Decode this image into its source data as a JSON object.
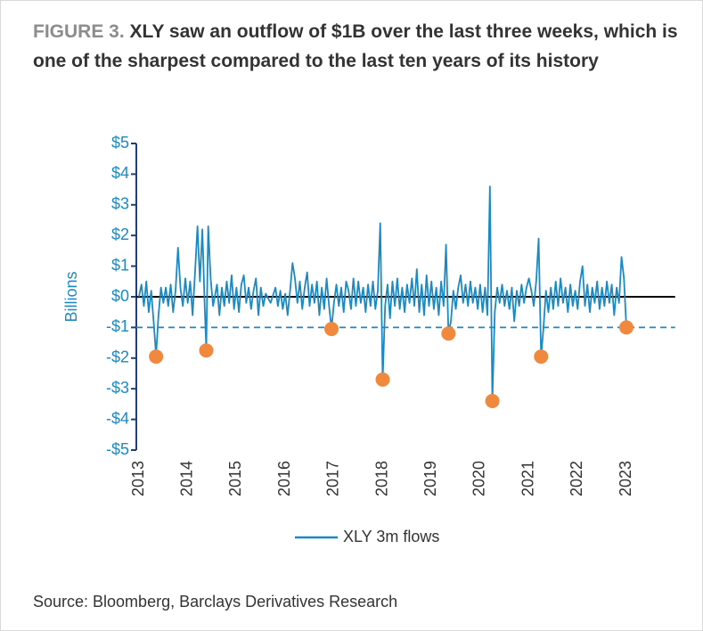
{
  "chart_data": {
    "type": "line",
    "title_label": "FIGURE 3.",
    "title": "XLY saw an outflow of $1B over the last three weeks, which is one of the sharpest compared to the last ten years of its history",
    "y_label": "Billions",
    "source": "Source: Bloomberg, Barclays Derivatives Research",
    "xlim": [
      2013,
      2024
    ],
    "xticks": [
      2013,
      2014,
      2015,
      2016,
      2017,
      2018,
      2019,
      2020,
      2021,
      2022,
      2023
    ],
    "ylim": [
      -5,
      5
    ],
    "yticks": [
      {
        "value": 5,
        "label": "$5"
      },
      {
        "value": 4,
        "label": "$4"
      },
      {
        "value": 3,
        "label": "$3"
      },
      {
        "value": 2,
        "label": "$2"
      },
      {
        "value": 1,
        "label": "$1"
      },
      {
        "value": 0,
        "label": "$0"
      },
      {
        "value": -1,
        "label": "-$1"
      },
      {
        "value": -2,
        "label": "-$2"
      },
      {
        "value": -3,
        "label": "-$3"
      },
      {
        "value": -4,
        "label": "-$4"
      },
      {
        "value": -5,
        "label": "-$5"
      }
    ],
    "threshold": -1,
    "x": [
      2013,
      2013.05,
      2013.1,
      2013.15,
      2013.2,
      2013.25,
      2013.3,
      2013.35,
      2013.4,
      2013.45,
      2013.5,
      2013.55,
      2013.6,
      2013.65,
      2013.7,
      2013.75,
      2013.8,
      2013.85,
      2013.9,
      2013.95,
      2014,
      2014.05,
      2014.1,
      2014.15,
      2014.2,
      2014.25,
      2014.3,
      2014.35,
      2014.38,
      2014.42,
      2014.47,
      2014.52,
      2014.6,
      2014.65,
      2014.7,
      2014.75,
      2014.8,
      2014.85,
      2014.9,
      2014.95,
      2015,
      2015.05,
      2015.1,
      2015.15,
      2015.2,
      2015.25,
      2015.3,
      2015.35,
      2015.4,
      2015.45,
      2015.5,
      2015.55,
      2015.6,
      2015.7,
      2015.8,
      2015.85,
      2015.9,
      2015.95,
      2016,
      2016.05,
      2016.1,
      2016.15,
      2016.2,
      2016.25,
      2016.3,
      2016.35,
      2016.4,
      2016.45,
      2016.5,
      2016.55,
      2016.6,
      2016.65,
      2016.7,
      2016.75,
      2016.8,
      2016.85,
      2016.9,
      2016.95,
      2017,
      2017.05,
      2017.1,
      2017.15,
      2017.2,
      2017.25,
      2017.3,
      2017.35,
      2017.4,
      2017.45,
      2017.5,
      2017.55,
      2017.6,
      2017.65,
      2017.7,
      2017.75,
      2017.8,
      2017.85,
      2017.9,
      2017.95,
      2018,
      2018.05,
      2018.1,
      2018.15,
      2018.2,
      2018.25,
      2018.3,
      2018.35,
      2018.4,
      2018.45,
      2018.5,
      2018.55,
      2018.6,
      2018.65,
      2018.7,
      2018.75,
      2018.8,
      2018.85,
      2018.9,
      2018.95,
      2019,
      2019.05,
      2019.1,
      2019.15,
      2019.2,
      2019.25,
      2019.3,
      2019.35,
      2019.4,
      2019.45,
      2019.5,
      2019.55,
      2019.6,
      2019.65,
      2019.7,
      2019.75,
      2019.8,
      2019.85,
      2019.9,
      2019.95,
      2020,
      2020.05,
      2020.1,
      2020.15,
      2020.2,
      2020.25,
      2020.3,
      2020.35,
      2020.4,
      2020.45,
      2020.5,
      2020.55,
      2020.6,
      2020.65,
      2020.7,
      2020.75,
      2020.8,
      2020.85,
      2020.9,
      2020.95,
      2021,
      2021.05,
      2021.1,
      2021.15,
      2021.2,
      2021.25,
      2021.3,
      2021.35,
      2021.4,
      2021.45,
      2021.5,
      2021.55,
      2021.6,
      2021.65,
      2021.7,
      2021.75,
      2021.8,
      2021.85,
      2021.9,
      2021.95,
      2022,
      2022.05,
      2022.1,
      2022.15,
      2022.2,
      2022.25,
      2022.3,
      2022.35,
      2022.4,
      2022.45,
      2022.5,
      2022.55,
      2022.6,
      2022.65,
      2022.7,
      2022.75,
      2022.8,
      2022.85,
      2022.9,
      2022.95,
      2023
    ],
    "series": [
      {
        "name": "XLY 3m flows",
        "color": "#1a8ac4",
        "values": [
          0,
          0.4,
          -0.3,
          0.5,
          -0.5,
          0.2,
          -0.8,
          -1.9,
          -0.6,
          0.3,
          -0.2,
          0.3,
          -0.3,
          0.4,
          -0.5,
          0.2,
          1.6,
          0.3,
          -0.3,
          0.6,
          -0.2,
          0.5,
          -0.6,
          0.8,
          2.3,
          0.5,
          2.2,
          -0.4,
          -1.7,
          2.3,
          0.6,
          -0.3,
          0.4,
          -0.6,
          0.3,
          -0.3,
          0.5,
          -0.2,
          0.7,
          -0.4,
          0.3,
          -0.5,
          0.4,
          0.7,
          -0.2,
          0.3,
          -0.4,
          0.2,
          0.6,
          -0.6,
          0.3,
          -0.3,
          0.1,
          -0.2,
          0.3,
          -0.3,
          0.2,
          -0.4,
          0.1,
          -0.6,
          0.2,
          1.1,
          0.6,
          -0.2,
          0.5,
          -0.4,
          0.3,
          0.8,
          -0.3,
          0.4,
          -0.2,
          0.5,
          -0.6,
          0.3,
          -0.4,
          0.6,
          -0.3,
          -1.05,
          -0.2,
          0.4,
          -0.3,
          0.3,
          -0.5,
          0.5,
          0.2,
          -0.4,
          0.6,
          -0.3,
          0.5,
          -0.2,
          0.3,
          -0.5,
          0.4,
          -0.3,
          0.5,
          -0.4,
          0.2,
          2.4,
          -2.7,
          -0.3,
          0.4,
          -0.7,
          0.5,
          -0.3,
          0.6,
          -0.4,
          0.3,
          -0.5,
          0.4,
          -0.2,
          0.6,
          -0.3,
          0.9,
          -0.5,
          0.4,
          -0.6,
          0.7,
          -0.3,
          0.5,
          -0.4,
          0.3,
          -0.6,
          0.5,
          -0.3,
          1.7,
          -1.2,
          -0.8,
          0.2,
          -0.4,
          0.3,
          0.7,
          -0.2,
          0.4,
          -0.3,
          0.5,
          -0.2,
          0.3,
          -0.4,
          0.4,
          -0.5,
          0.3,
          -0.6,
          3.6,
          -3.4,
          -0.5,
          0.3,
          -0.2,
          0.4,
          -0.3,
          0.2,
          -0.4,
          0.3,
          -0.8,
          0.2,
          -0.3,
          0.4,
          -0.2,
          0.3,
          0.6,
          0.2,
          -0.3,
          0.5,
          1.9,
          -1.95,
          -1.0,
          0.2,
          -0.5,
          0.3,
          -0.4,
          0.5,
          -0.3,
          0.6,
          -0.2,
          0.3,
          -0.5,
          0.4,
          -0.3,
          0.2,
          -0.4,
          0.5,
          1.0,
          -0.3,
          0.4,
          -0.5,
          0.3,
          -0.2,
          0.5,
          -0.4,
          0.3,
          -0.3,
          0.5,
          -0.2,
          0.4,
          -0.6,
          0.3,
          -0.2,
          1.3,
          0.6,
          -1.0
        ]
      }
    ],
    "highlights": {
      "color": "#f0883e",
      "x": [
        2013.35,
        2014.38,
        2016.95,
        2018.0,
        2019.35,
        2020.25,
        2021.25,
        2023.0
      ],
      "values": [
        -1.95,
        -1.75,
        -1.05,
        -2.7,
        -1.2,
        -3.4,
        -1.95,
        -1.0
      ]
    }
  }
}
